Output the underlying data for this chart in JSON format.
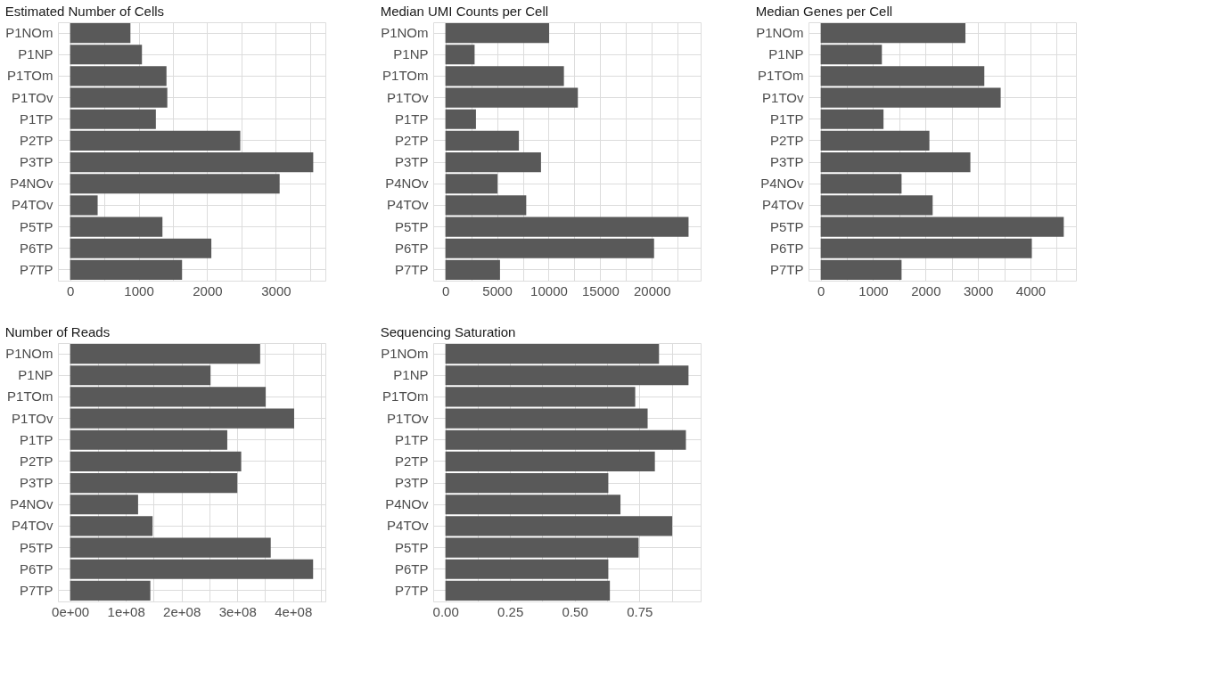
{
  "chart_data": [
    {
      "type": "bar",
      "orientation": "horizontal",
      "title": "Estimated Number of Cells",
      "color": "#595959",
      "grid": true,
      "categories": [
        "P1NOm",
        "P1NP",
        "P1TOm",
        "P1TOv",
        "P1TP",
        "P2TP",
        "P3TP",
        "P4NOv",
        "P4TOv",
        "P5TP",
        "P6TP",
        "P7TP"
      ],
      "values": [
        880,
        1048,
        1406,
        1418,
        1251,
        2482,
        3546,
        3056,
        402,
        1347,
        2060,
        1633
      ],
      "xlim": [
        -177,
        3723
      ],
      "xticks": [
        0,
        {
          "value": 500,
          "label": null
        },
        1000,
        {
          "value": 1500,
          "label": null
        },
        2000,
        {
          "value": 2500,
          "label": null
        },
        3000,
        {
          "value": 3500,
          "label": null
        }
      ]
    },
    {
      "type": "bar",
      "orientation": "horizontal",
      "title": "Median UMI Counts per Cell",
      "color": "#595959",
      "grid": true,
      "categories": [
        "P1NOm",
        "P1NP",
        "P1TOm",
        "P1TOv",
        "P1TP",
        "P2TP",
        "P3TP",
        "P4NOv",
        "P4TOv",
        "P5TP",
        "P6TP",
        "P7TP"
      ],
      "values": [
        10050,
        2830,
        11480,
        12830,
        2960,
        7120,
        9260,
        5050,
        7830,
        23550,
        20210,
        5290
      ],
      "xlim": [
        -1177,
        24722
      ],
      "xticks": [
        0,
        {
          "value": 2500,
          "label": null
        },
        5000,
        {
          "value": 7500,
          "label": null
        },
        10000,
        {
          "value": 12500,
          "label": null
        },
        15000,
        {
          "value": 17500,
          "label": null
        },
        20000,
        {
          "value": 22500,
          "label": null
        }
      ]
    },
    {
      "type": "bar",
      "orientation": "horizontal",
      "title": "Median Genes per Cell",
      "color": "#595959",
      "grid": true,
      "categories": [
        "P1NOm",
        "P1NP",
        "P1TOm",
        "P1TOv",
        "P1TP",
        "P2TP",
        "P3TP",
        "P4NOv",
        "P4TOv",
        "P5TP",
        "P6TP",
        "P7TP"
      ],
      "values": [
        2760,
        1167,
        3120,
        3432,
        1198,
        2073,
        2854,
        1542,
        2135,
        4635,
        4026,
        1542
      ],
      "xlim": [
        -232,
        4867
      ],
      "xticks": [
        0,
        {
          "value": 500,
          "label": null
        },
        1000,
        {
          "value": 1500,
          "label": null
        },
        2000,
        {
          "value": 2500,
          "label": null
        },
        3000,
        {
          "value": 3500,
          "label": null
        },
        4000,
        {
          "value": 4500,
          "label": null
        }
      ]
    },
    {
      "type": "bar",
      "orientation": "horizontal",
      "title": "Number of Reads",
      "color": "#595959",
      "grid": true,
      "categories": [
        "P1NOm",
        "P1NP",
        "P1TOm",
        "P1TOv",
        "P1TP",
        "P2TP",
        "P3TP",
        "P4NOv",
        "P4TOv",
        "P5TP",
        "P6TP",
        "P7TP"
      ],
      "values": [
        341000000,
        252000000,
        351000000,
        402000000,
        282000000,
        307000000,
        300000000,
        122000000,
        148000000,
        360000000,
        436000000,
        144000000
      ],
      "xlim": [
        -21800000,
        458000000
      ],
      "xticks": [
        {
          "value": 0,
          "label": "0e+00"
        },
        {
          "value": 50000000,
          "label": null
        },
        {
          "value": 100000000,
          "label": "1e+08"
        },
        {
          "value": 150000000,
          "label": null
        },
        {
          "value": 200000000,
          "label": "2e+08"
        },
        {
          "value": 250000000,
          "label": null
        },
        {
          "value": 300000000,
          "label": "3e+08"
        },
        {
          "value": 350000000,
          "label": null
        },
        {
          "value": 400000000,
          "label": "4e+08"
        },
        {
          "value": 450000000,
          "label": null
        }
      ]
    },
    {
      "type": "bar",
      "orientation": "horizontal",
      "title": "Sequencing Saturation",
      "color": "#595959",
      "grid": true,
      "categories": [
        "P1NOm",
        "P1NP",
        "P1TOm",
        "P1TOv",
        "P1TP",
        "P2TP",
        "P3TP",
        "P4NOv",
        "P4TOv",
        "P5TP",
        "P6TP",
        "P7TP"
      ],
      "values": [
        0.826,
        0.94,
        0.734,
        0.782,
        0.93,
        0.81,
        0.63,
        0.677,
        0.877,
        0.747,
        0.63,
        0.636
      ],
      "xlim": [
        -0.047,
        0.987
      ],
      "xticks": [
        {
          "value": 0,
          "label": "0.00"
        },
        {
          "value": 0.125,
          "label": null
        },
        {
          "value": 0.25,
          "label": "0.25"
        },
        {
          "value": 0.375,
          "label": null
        },
        {
          "value": 0.5,
          "label": "0.50"
        },
        {
          "value": 0.625,
          "label": null
        },
        {
          "value": 0.75,
          "label": "0.75"
        },
        {
          "value": 0.875,
          "label": null
        }
      ]
    }
  ]
}
